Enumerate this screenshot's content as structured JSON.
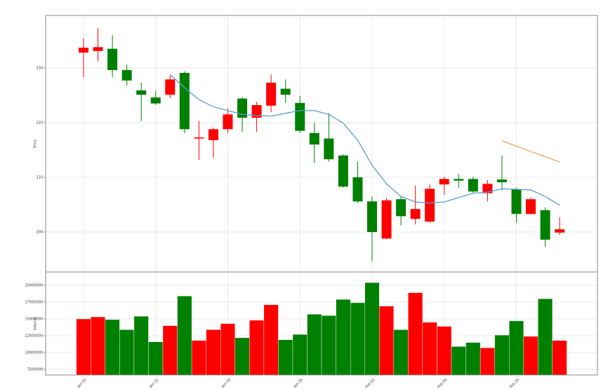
{
  "chart_data": [
    {
      "type": "candlestick",
      "y_label": "Price",
      "open": [
        233.7,
        233.8,
        229.6,
        227.7,
        225.1,
        223.5,
        227.9,
        218.8,
        217.3,
        218.8,
        221.5,
        220.9,
        223.2,
        227.3,
        225.1,
        218.5,
        216.0,
        213.3,
        208.3,
        205.6,
        200.0,
        205.8,
        202.9,
        204.2,
        207.9,
        209.7,
        209.4,
        207.4,
        208.8,
        209.1,
        203.3,
        206.0,
        198.6,
        200.5
      ],
      "high": [
        235.4,
        237.3,
        236.0,
        230.6,
        227.3,
        225.8,
        228.6,
        229.4,
        220.3,
        219.1,
        222.6,
        224.7,
        223.8,
        228.8,
        227.9,
        224.9,
        220.0,
        221.7,
        214.2,
        212.9,
        206.5,
        206.2,
        206.5,
        208.5,
        208.7,
        210.1,
        210.6,
        210.1,
        209.5,
        214.0,
        208.1,
        206.3,
        204.5,
        202.7
      ],
      "low": [
        228.3,
        231.2,
        228.3,
        226.8,
        220.3,
        223.2,
        224.5,
        218.1,
        213.2,
        213.6,
        218.1,
        218.3,
        218.3,
        221.9,
        223.6,
        218.1,
        212.6,
        212.9,
        208.1,
        205.3,
        194.7,
        198.7,
        201.2,
        201.4,
        201.7,
        206.8,
        208.1,
        207.2,
        205.6,
        207.6,
        201.7,
        203.2,
        197.3,
        199.5
      ],
      "close": [
        232.8,
        233.1,
        233.5,
        229.6,
        225.9,
        224.6,
        225.1,
        229.1,
        217.1,
        216.8,
        218.8,
        224.4,
        220.9,
        223.1,
        226.2,
        223.6,
        218.1,
        217.1,
        214.0,
        210.0,
        205.6,
        198.8,
        206.0,
        202.4,
        201.9,
        208.7,
        209.7,
        209.7,
        207.1,
        209.6,
        207.8,
        203.3,
        204.0,
        199.9
      ],
      "up_color": "#008000",
      "down_color": "#ff0000",
      "lines": [
        {
          "color": "#5b9bd5",
          "values": [
            null,
            null,
            null,
            null,
            null,
            null,
            228.8,
            226.4,
            224.2,
            222.9,
            222.2,
            221.5,
            221.3,
            221.2,
            221.7,
            222.2,
            222.2,
            221.5,
            219.9,
            216.8,
            212.2,
            208.8,
            206.5,
            205.5,
            205.3,
            205.5,
            206.3,
            207.1,
            207.3,
            207.9,
            207.8,
            207.7,
            206.5,
            204.9
          ]
        },
        {
          "color": "#f5a05a",
          "values": [
            null,
            null,
            null,
            null,
            null,
            null,
            null,
            null,
            null,
            null,
            null,
            null,
            null,
            null,
            null,
            null,
            null,
            null,
            null,
            null,
            null,
            null,
            null,
            null,
            null,
            null,
            null,
            null,
            null,
            216.7,
            215.7,
            214.7,
            213.8,
            212.8
          ]
        }
      ],
      "ylim": [
        192.7,
        239.6
      ],
      "yticks": [
        200,
        210,
        220,
        230
      ],
      "grid": true
    },
    {
      "type": "bar",
      "y_label": "Volume",
      "categories": [
        "Jan 05",
        null,
        null,
        null,
        null,
        "Jan 12",
        null,
        null,
        null,
        null,
        "Jan 19",
        null,
        null,
        null,
        null,
        "Jan 26",
        null,
        null,
        null,
        null,
        "Feb 02",
        null,
        null,
        null,
        null,
        "Feb 09",
        null,
        null,
        null,
        null,
        "Feb 16",
        null,
        null,
        null
      ],
      "values": [
        15000000,
        15300000,
        14900000,
        13400000,
        15400000,
        11600000,
        14000000,
        18400000,
        11800000,
        13400000,
        14300000,
        12200000,
        14800000,
        17100000,
        11900000,
        12700000,
        15700000,
        15500000,
        17900000,
        17400000,
        20400000,
        16900000,
        13400000,
        18900000,
        14500000,
        13900000,
        10900000,
        11500000,
        10700000,
        12600000,
        14700000,
        12400000,
        18000000,
        11800000
      ],
      "colors": [
        "#ff0000",
        "#ff0000",
        "#008000",
        "#008000",
        "#008000",
        "#008000",
        "#ff0000",
        "#008000",
        "#ff0000",
        "#ff0000",
        "#ff0000",
        "#008000",
        "#ff0000",
        "#ff0000",
        "#008000",
        "#008000",
        "#008000",
        "#008000",
        "#008000",
        "#008000",
        "#008000",
        "#ff0000",
        "#008000",
        "#ff0000",
        "#ff0000",
        "#ff0000",
        "#008000",
        "#008000",
        "#ff0000",
        "#008000",
        "#008000",
        "#ff0000",
        "#008000",
        "#ff0000"
      ],
      "ylim": [
        6670000,
        21980000
      ],
      "yticks": [
        7500000,
        10000000,
        12500000,
        15000000,
        17500000,
        20000000
      ],
      "grid": true
    }
  ]
}
